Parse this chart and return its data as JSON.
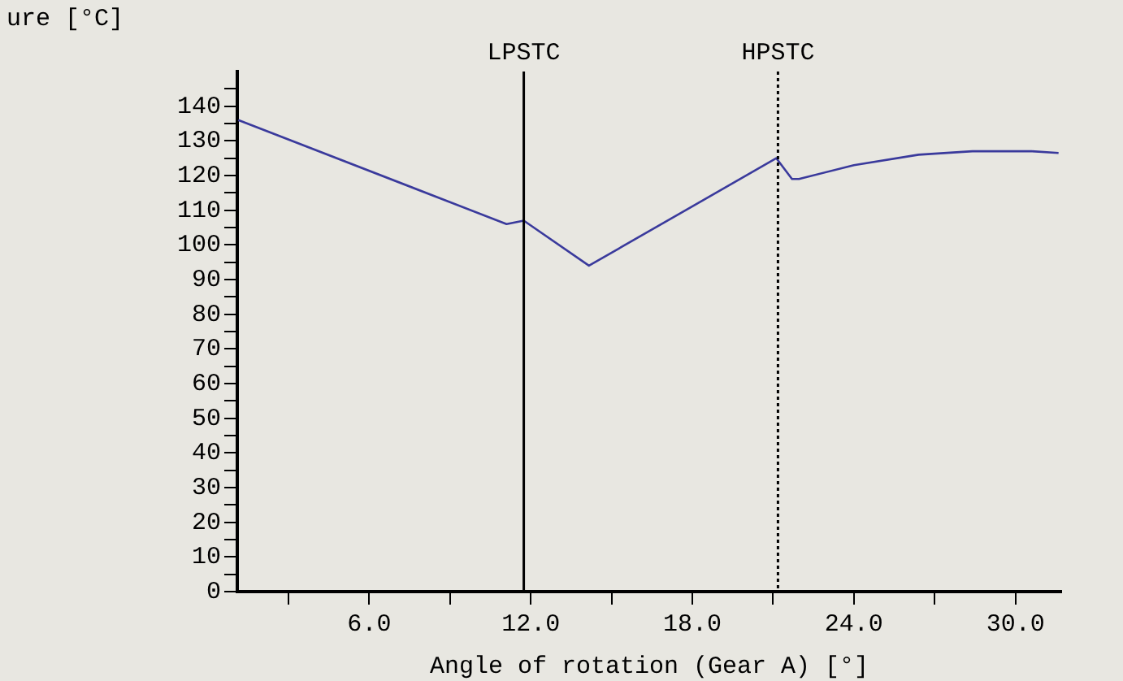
{
  "chart_data": {
    "type": "line",
    "xlabel": "Angle of rotation (Gear A) [°]",
    "ylabel": "ure [°C]",
    "x": [
      1.14,
      11.1,
      11.74,
      14.16,
      21.12,
      21.7,
      21.96,
      24.0,
      26.4,
      28.4,
      30.6,
      31.6
    ],
    "series": [
      {
        "color": "#3a3a9c",
        "values": [
          136,
          106,
          107,
          94,
          125,
          119,
          119,
          123,
          126,
          127,
          127,
          126.5
        ]
      }
    ],
    "xlim": [
      1.1,
      31.7
    ],
    "xticks": [
      {
        "value": 3,
        "label": null
      },
      {
        "value": 6,
        "label": "6.0"
      },
      {
        "value": 9,
        "label": null
      },
      {
        "value": 12,
        "label": "12.0"
      },
      {
        "value": 15,
        "label": null
      },
      {
        "value": 18,
        "label": "18.0"
      },
      {
        "value": 21,
        "label": null
      },
      {
        "value": 24,
        "label": "24.0"
      },
      {
        "value": 27,
        "label": null
      },
      {
        "value": 30,
        "label": "30.0"
      }
    ],
    "ylim": [
      0,
      150
    ],
    "yticks": [
      0,
      {
        "value": 5,
        "label": null
      },
      10,
      {
        "value": 15,
        "label": null
      },
      20,
      {
        "value": 25,
        "label": null
      },
      30,
      {
        "value": 35,
        "label": null
      },
      40,
      {
        "value": 45,
        "label": null
      },
      50,
      {
        "value": 55,
        "label": null
      },
      60,
      {
        "value": 65,
        "label": null
      },
      70,
      {
        "value": 75,
        "label": null
      },
      80,
      {
        "value": 85,
        "label": null
      },
      90,
      {
        "value": 95,
        "label": null
      },
      100,
      {
        "value": 105,
        "label": null
      },
      110,
      {
        "value": 115,
        "label": null
      },
      120,
      {
        "value": 125,
        "label": null
      },
      130,
      {
        "value": 135,
        "label": null
      },
      140,
      {
        "value": 145,
        "label": null
      }
    ],
    "ref_lines": [
      {
        "axis": "x",
        "value": 11.74,
        "label": "LPSTC",
        "color": "#000000",
        "line_style": "solid"
      },
      {
        "axis": "x",
        "value": 21.18,
        "label": "HPSTC",
        "color": "#000000",
        "line_style": "dotted"
      }
    ],
    "grid": false,
    "legend": false,
    "marker": "none",
    "line_style": "solid"
  }
}
